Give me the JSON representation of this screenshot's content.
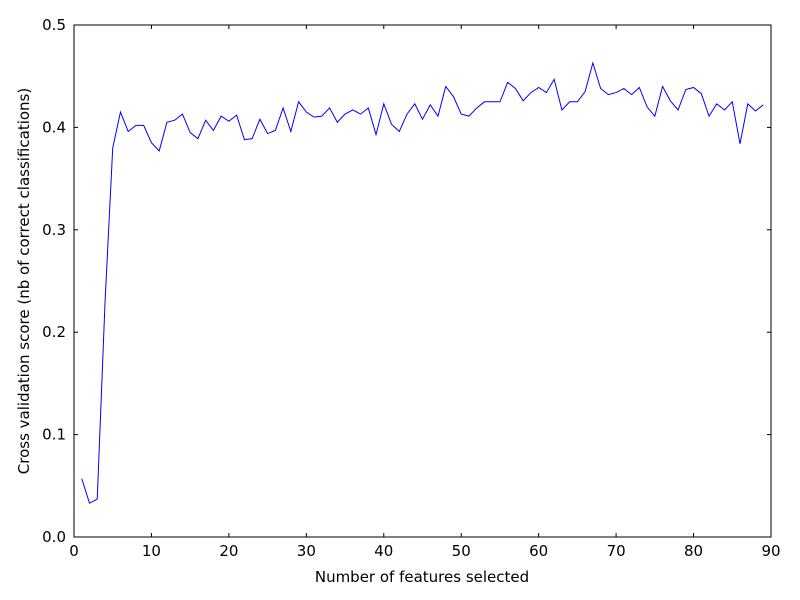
{
  "chart_data": {
    "type": "line",
    "title": "",
    "xlabel": "Number of features selected",
    "ylabel": "Cross validation score (nb of correct classifications)",
    "xlim": [
      0,
      90
    ],
    "ylim": [
      0.0,
      0.5
    ],
    "xticks": [
      0,
      10,
      20,
      30,
      40,
      50,
      60,
      70,
      80,
      90
    ],
    "yticks": [
      0.0,
      0.1,
      0.2,
      0.3,
      0.4,
      0.5
    ],
    "xtick_labels": [
      "0",
      "10",
      "20",
      "30",
      "40",
      "50",
      "60",
      "70",
      "80",
      "90"
    ],
    "ytick_labels": [
      "0.0",
      "0.1",
      "0.2",
      "0.3",
      "0.4",
      "0.5"
    ],
    "grid": false,
    "legend": false,
    "line_color": "#0000ff",
    "series": [
      {
        "x": [
          1,
          2,
          3,
          4,
          5,
          6,
          7,
          8,
          9,
          10,
          11,
          12,
          13,
          14,
          15,
          16,
          17,
          18,
          19,
          20,
          21,
          22,
          23,
          24,
          25,
          26,
          27,
          28,
          29,
          30,
          31,
          32,
          33,
          34,
          35,
          36,
          37,
          38,
          39,
          40,
          41,
          42,
          43,
          44,
          45,
          46,
          47,
          48,
          49,
          50,
          51,
          52,
          53,
          54,
          55,
          56,
          57,
          58,
          59,
          60,
          61,
          62,
          63,
          64,
          65,
          66,
          67,
          68,
          69,
          70,
          71,
          72,
          73,
          74,
          75,
          76,
          77,
          78,
          79,
          80,
          81,
          82,
          83,
          84,
          85,
          86,
          87,
          88,
          89
        ],
        "values": [
          0.057,
          0.033,
          0.037,
          0.228,
          0.38,
          0.415,
          0.396,
          0.402,
          0.402,
          0.385,
          0.377,
          0.405,
          0.407,
          0.413,
          0.395,
          0.389,
          0.407,
          0.397,
          0.411,
          0.406,
          0.412,
          0.388,
          0.389,
          0.408,
          0.394,
          0.397,
          0.419,
          0.396,
          0.425,
          0.415,
          0.41,
          0.411,
          0.419,
          0.405,
          0.413,
          0.417,
          0.413,
          0.419,
          0.393,
          0.423,
          0.403,
          0.396,
          0.413,
          0.423,
          0.408,
          0.422,
          0.411,
          0.44,
          0.43,
          0.413,
          0.411,
          0.419,
          0.425,
          0.425,
          0.425,
          0.444,
          0.438,
          0.426,
          0.434,
          0.439,
          0.434,
          0.447,
          0.417,
          0.425,
          0.425,
          0.435,
          0.463,
          0.438,
          0.432,
          0.434,
          0.438,
          0.432,
          0.439,
          0.42,
          0.411,
          0.44,
          0.426,
          0.417,
          0.437,
          0.439,
          0.433,
          0.411,
          0.423,
          0.417,
          0.425,
          0.384,
          0.423,
          0.416,
          0.422
        ]
      }
    ]
  }
}
